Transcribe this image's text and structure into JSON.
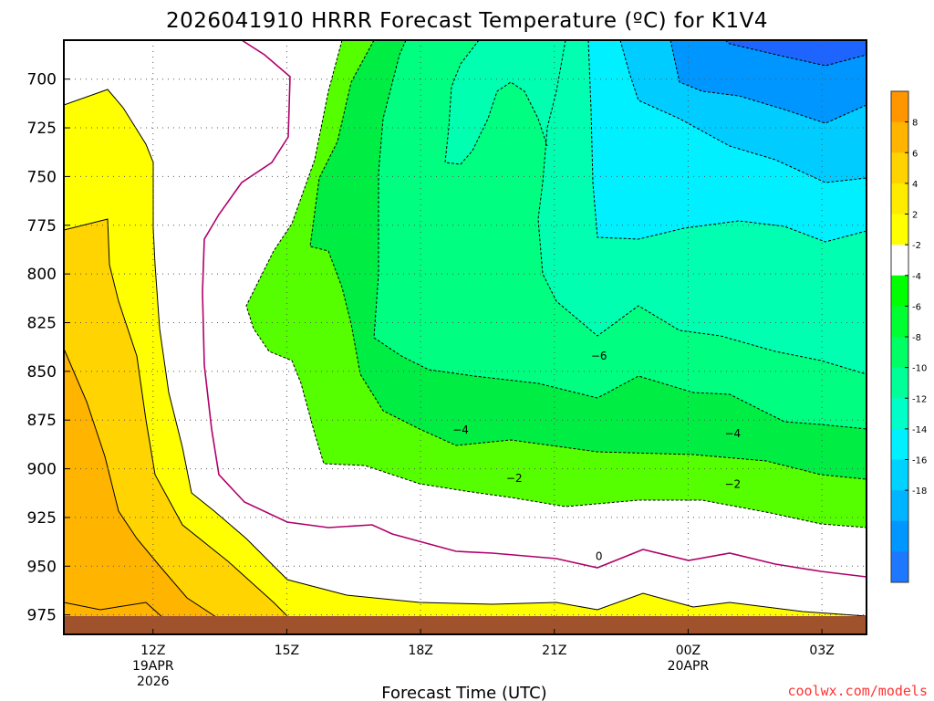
{
  "chart_data": {
    "type": "contour",
    "title": "2026041910 HRRR Forecast Temperature (ºC) for K1V4",
    "xlabel": "Forecast Time (UTC)",
    "ylabel": "",
    "credit": "coolwx.com/models",
    "x_unit": "hours since 12Z 19APR 2026",
    "xlim": [
      -2,
      16
    ],
    "ylim": [
      985,
      680
    ],
    "y_ticks": [
      700,
      725,
      750,
      775,
      800,
      825,
      850,
      875,
      900,
      925,
      950,
      975
    ],
    "x_ticks": [
      {
        "x": 0,
        "lines": [
          "12Z",
          "19APR",
          "2026"
        ]
      },
      {
        "x": 3,
        "lines": [
          "15Z"
        ]
      },
      {
        "x": 6,
        "lines": [
          "18Z"
        ]
      },
      {
        "x": 9,
        "lines": [
          "21Z"
        ]
      },
      {
        "x": 12,
        "lines": [
          "00Z",
          "20APR"
        ]
      },
      {
        "x": 15,
        "lines": [
          "03Z"
        ]
      }
    ],
    "grid": true,
    "colorbar": {
      "levels": [
        -20,
        -18,
        -16,
        -14,
        -12,
        -10,
        -8,
        -6,
        -4,
        -2,
        2,
        4,
        6,
        8,
        10
      ],
      "labels": [
        8,
        6,
        4,
        2,
        -2,
        -4,
        -6,
        -8,
        -10,
        -12,
        -14,
        -16,
        -18
      ],
      "colors": [
        "#1e78ff",
        "#0096ff",
        "#00b4ff",
        "#00d2ff",
        "#00f0ff",
        "#00ffc8",
        "#00ff96",
        "#00ff64",
        "#00ff32",
        "#00ff00",
        "#ffffff",
        "#ffff00",
        "#ffeb00",
        "#ffd200",
        "#ffb400",
        "#ff9600"
      ]
    },
    "contour_labels": [
      {
        "value": "−6",
        "x": 10.0,
        "p": 842
      },
      {
        "value": "−4",
        "x": 6.9,
        "p": 880
      },
      {
        "value": "−4",
        "x": 13.0,
        "p": 882
      },
      {
        "value": "−2",
        "x": 8.1,
        "p": 905
      },
      {
        "value": "−2",
        "x": 13.0,
        "p": 908
      },
      {
        "value": "0",
        "x": 10.0,
        "p": 945
      }
    ]
  }
}
